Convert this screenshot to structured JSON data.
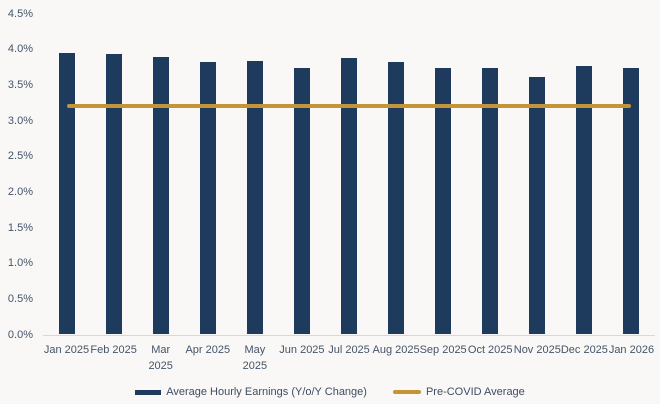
{
  "chart_data": {
    "type": "bar",
    "title": "",
    "xlabel": "",
    "ylabel": "",
    "categories": [
      "Jan 2025",
      "Feb 2025",
      "Mar\n2025",
      "Apr 2025",
      "May\n2025",
      "Jun 2025",
      "Jul 2025",
      "Aug 2025",
      "Sep 2025",
      "Oct 2025",
      "Nov 2025",
      "Dec 2025",
      "Jan 2026"
    ],
    "series": [
      {
        "name": "Average Hourly Earnings (Y/o/Y Change)",
        "type": "bar",
        "values": [
          3.95,
          3.93,
          3.89,
          3.82,
          3.84,
          3.73,
          3.88,
          3.82,
          3.73,
          3.74,
          3.61,
          3.76,
          3.74
        ]
      },
      {
        "name": "Pre-COVID Average",
        "type": "line",
        "value": 3.2
      }
    ],
    "ylim": [
      0,
      4.5
    ],
    "y_tick_step": 0.5,
    "y_tick_labels": [
      "0.0%",
      "0.5%",
      "1.0%",
      "1.5%",
      "2.0%",
      "2.5%",
      "3.0%",
      "3.5%",
      "4.0%",
      "4.5%"
    ],
    "grid": false,
    "legend_position": "bottom"
  },
  "legend": {
    "bar_series_label": "Average Hourly Earnings (Y/o/Y Change)",
    "line_series_label": "Pre-COVID Average"
  },
  "colors": {
    "bar": "#1e3a5c",
    "line": "#c39438",
    "axis_text": "#44546a",
    "axis_line": "#d9d8d5",
    "background": "#f9f8f6"
  }
}
